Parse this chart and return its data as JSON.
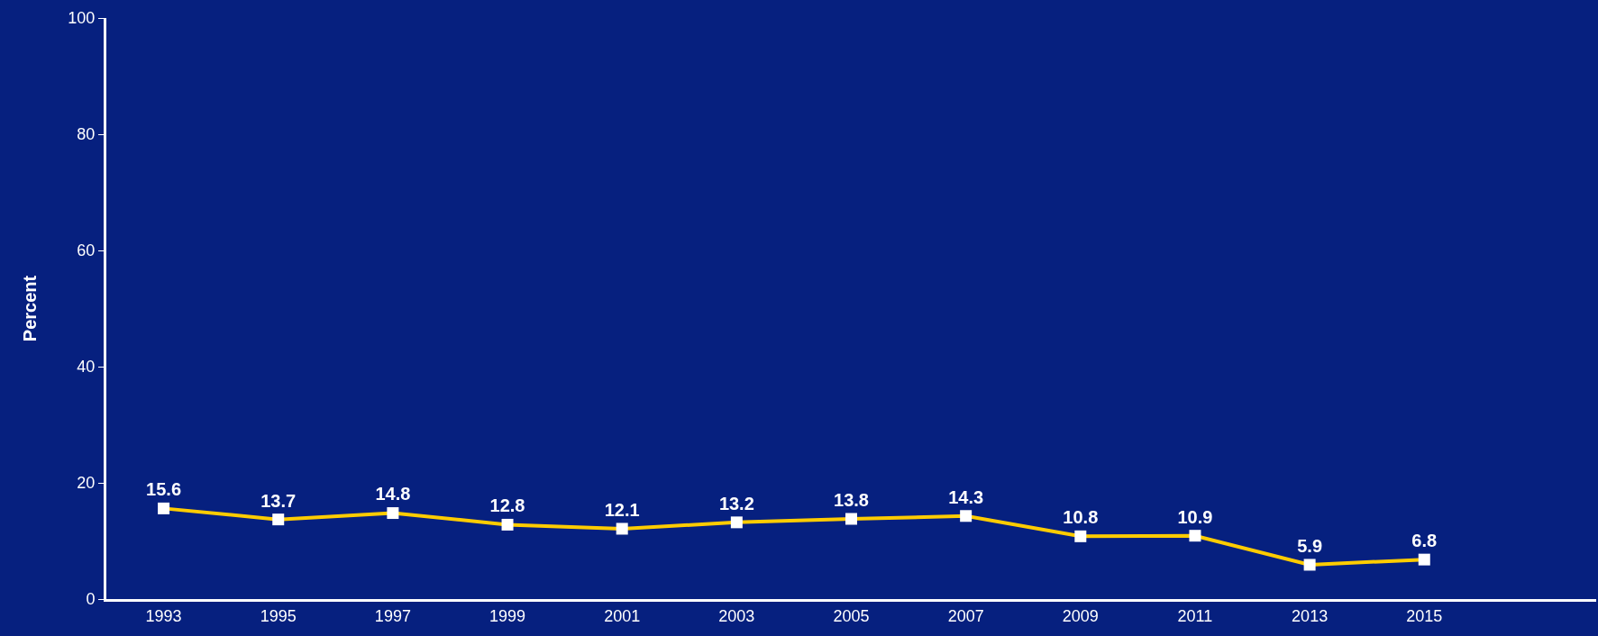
{
  "chart_data": {
    "type": "line",
    "ylabel": "Percent",
    "categories": [
      "1993",
      "1995",
      "1997",
      "1999",
      "2001",
      "2003",
      "2005",
      "2007",
      "2009",
      "2011",
      "2013",
      "2015"
    ],
    "series": [
      {
        "color": "#ffcc00",
        "values": [
          15.6,
          13.7,
          14.8,
          12.8,
          12.1,
          13.2,
          13.8,
          14.3,
          10.8,
          10.9,
          5.9,
          6.8
        ]
      }
    ],
    "ylim": [
      0,
      100
    ],
    "yticks": [
      0,
      20,
      40,
      60,
      80,
      100
    ],
    "grid": false,
    "legend": false,
    "marker": "square",
    "line_style": "solid",
    "data_labels": true
  }
}
